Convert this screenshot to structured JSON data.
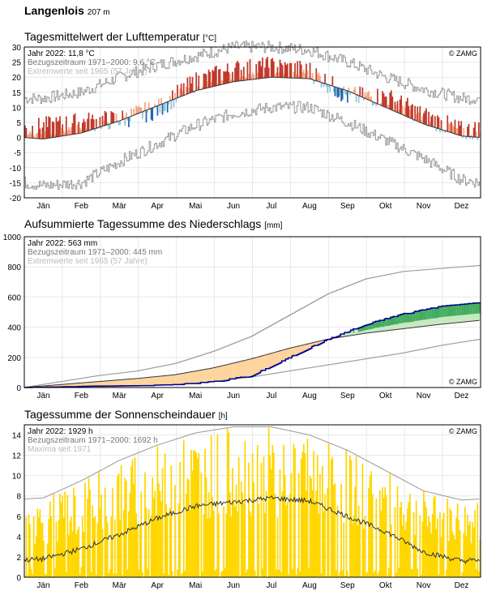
{
  "station": {
    "name": "Langenlois",
    "elevation": "207 m"
  },
  "months": [
    "Jän",
    "Feb",
    "Mär",
    "Apr",
    "Mai",
    "Jun",
    "Jul",
    "Aug",
    "Sep",
    "Okt",
    "Nov",
    "Dez"
  ],
  "colors": {
    "warm_dark": "#c0392b",
    "warm_light": "#f4a582",
    "cold_dark": "#2166ac",
    "cold_light": "#92c5de",
    "sun": "#ffd700",
    "precip_line": "#00008b",
    "precip_wet_dark": "#41ab5d",
    "precip_wet_light": "#c7e9c0",
    "precip_dry": "#fdd49e",
    "extreme": "#999999"
  },
  "chart_data": [
    {
      "type": "bar",
      "title": "Tagesmittelwert der Lufttemperatur",
      "unit": "[°C]",
      "copyright": "© ZAMG",
      "legend": [
        "Jahr 2022: 11,8 °C",
        "Bezugszeitraum 1971–2000: 9,6 °C",
        "Extremwerte seit 1965 (57 Jahre)"
      ],
      "ylim": [
        -20,
        30
      ],
      "yticks": [
        30,
        25,
        20,
        15,
        10,
        5,
        0,
        -5,
        -10,
        -15,
        -20
      ],
      "normal_monthly": [
        -0.5,
        1.5,
        5.5,
        10.5,
        15.5,
        18.5,
        20.0,
        19.5,
        15.5,
        10.0,
        4.5,
        0.5
      ],
      "max_monthly": [
        13,
        15,
        20,
        24,
        27,
        30,
        30,
        29,
        25,
        20,
        16,
        13
      ],
      "min_monthly": [
        -16,
        -15,
        -8,
        -2,
        4,
        8,
        10,
        10,
        5,
        -1,
        -7,
        -14
      ],
      "anomaly_monthly": [
        4.0,
        3.5,
        0.5,
        -1.0,
        3.0,
        4.0,
        3.5,
        2.5,
        -2.0,
        3.5,
        2.5,
        1.5
      ]
    },
    {
      "type": "area",
      "title": "Aufsummierte Tagessumme des Niederschlags",
      "unit": "[mm]",
      "copyright": "© ZAMG",
      "legend": [
        "Jahr 2022: 563 mm",
        "Bezugszeitraum 1971–2000: 445 mm",
        "Extremwerte seit 1965 (57 Jahre)"
      ],
      "ylim": [
        0,
        1000
      ],
      "yticks": [
        1000,
        800,
        600,
        400,
        200,
        0
      ],
      "year_cumulative_monthly": [
        5,
        10,
        12,
        20,
        40,
        80,
        200,
        320,
        420,
        490,
        540,
        563
      ],
      "normal_cumulative_monthly": [
        20,
        40,
        60,
        85,
        130,
        190,
        260,
        320,
        360,
        390,
        420,
        445
      ],
      "max_cumulative_monthly": [
        40,
        80,
        110,
        160,
        240,
        340,
        480,
        620,
        720,
        770,
        790,
        810
      ],
      "min_cumulative_monthly": [
        0,
        5,
        10,
        20,
        40,
        70,
        110,
        150,
        190,
        230,
        280,
        320
      ]
    },
    {
      "type": "bar",
      "title": "Tagessumme der Sonnenscheindauer",
      "unit": "[h]",
      "copyright": "© ZAMG",
      "legend": [
        "Jahr 2022: 1929 h",
        "Bezugszeitraum 1971–2000: 1692 h",
        "Maxima seit 1971"
      ],
      "ylim": [
        0,
        15
      ],
      "yticks": [
        14,
        12,
        10,
        8,
        6,
        4,
        2,
        0
      ],
      "normal_monthly": [
        1.8,
        2.8,
        4.2,
        5.8,
        7.0,
        7.4,
        7.8,
        7.5,
        6.0,
        4.5,
        2.5,
        1.6
      ],
      "max_monthly": [
        7.8,
        9.5,
        11.5,
        13.0,
        14.2,
        14.8,
        14.8,
        14.0,
        12.5,
        10.5,
        8.5,
        7.6
      ]
    }
  ]
}
